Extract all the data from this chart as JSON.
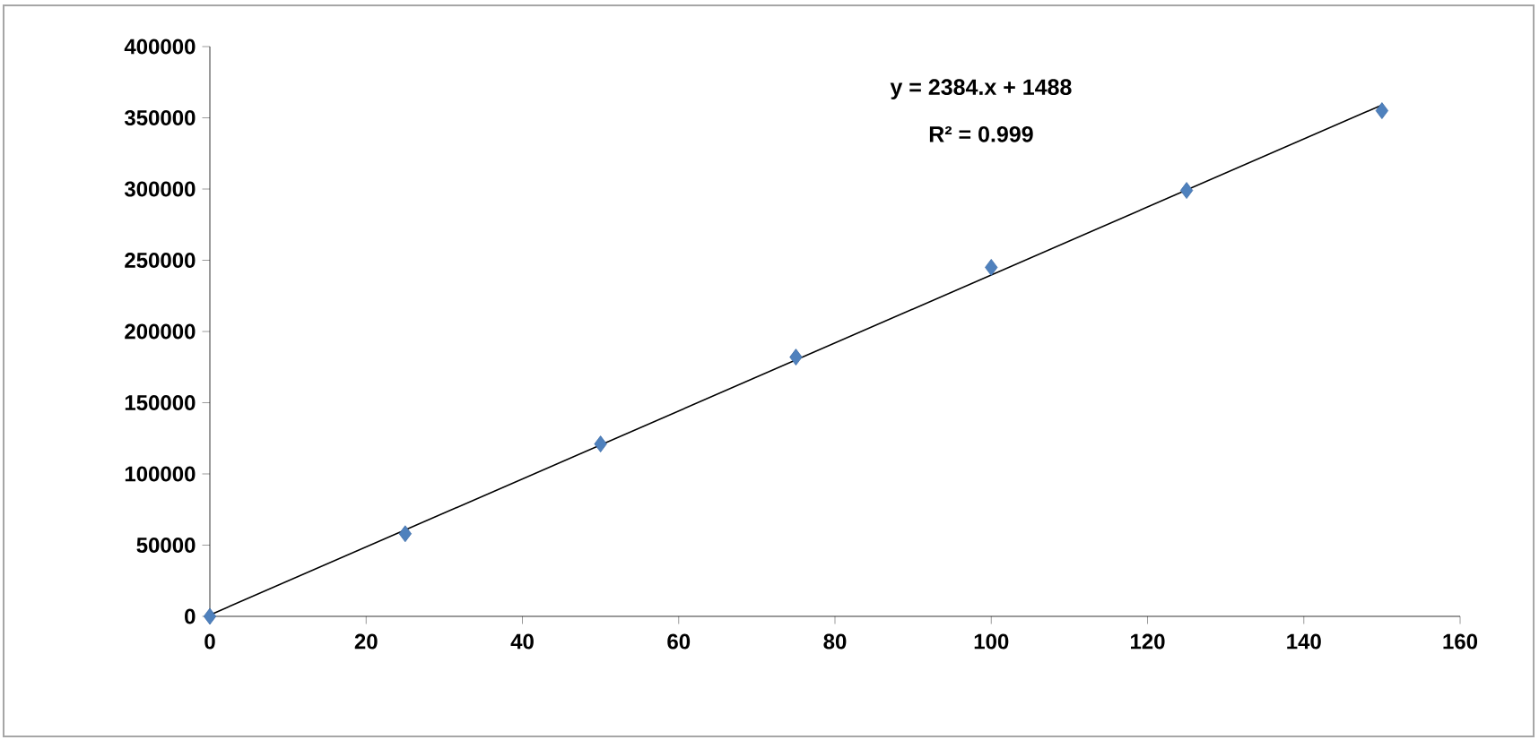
{
  "chart_data": {
    "type": "scatter",
    "series": [
      {
        "color": "#4f81bd",
        "marker": "diamond",
        "x": [
          0,
          25,
          50,
          75,
          100,
          125,
          150
        ],
        "values": [
          0,
          58000,
          121000,
          182000,
          245000,
          299000,
          355000
        ]
      },
      {
        "type": "line",
        "color": "#000000",
        "marker": "none",
        "line_style": "solid",
        "x": [
          0,
          150
        ],
        "values": [
          1000,
          359000
        ]
      }
    ],
    "annotations": [
      "y = 2384.x + 1488",
      "R² = 0.999"
    ],
    "xlim": [
      0,
      160
    ],
    "xticks": [
      0,
      20,
      40,
      60,
      80,
      100,
      120,
      140,
      160
    ],
    "ylim": [
      0,
      400000
    ],
    "yticks": [
      0,
      50000,
      100000,
      150000,
      200000,
      250000,
      300000,
      350000,
      400000
    ],
    "grid": false
  }
}
